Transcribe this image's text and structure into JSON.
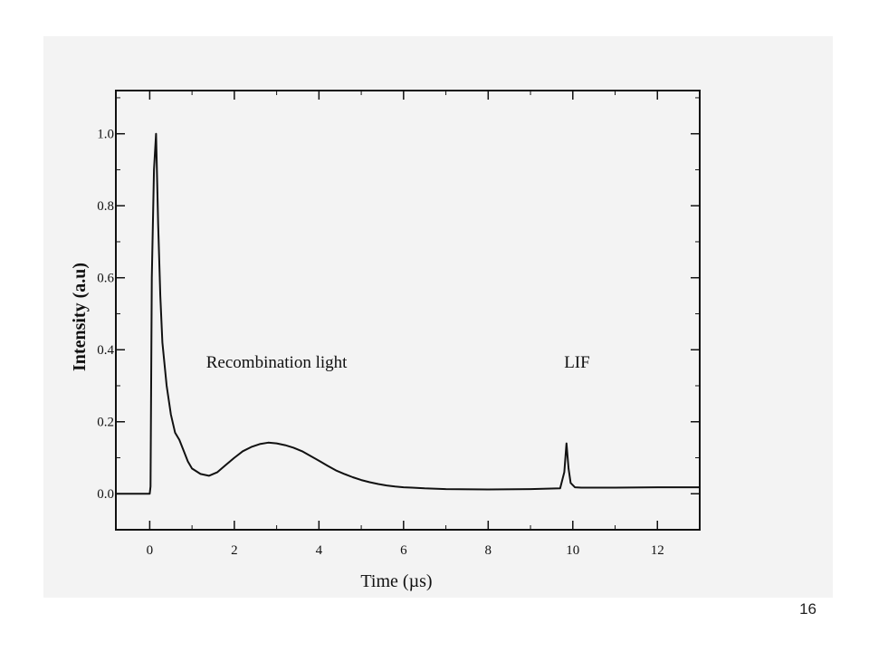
{
  "slide": {
    "page_number": "16"
  },
  "colors": {
    "panel_background": "#f3f3f3",
    "ink": "#111111"
  },
  "chart_data": {
    "type": "line",
    "title": "",
    "xlabel": "Time (µs)",
    "ylabel": "Intensity (a.u)",
    "xlim": [
      -0.8,
      13
    ],
    "ylim": [
      -0.1,
      1.12
    ],
    "xticks": [
      0,
      2,
      4,
      6,
      8,
      10,
      12
    ],
    "xtick_labels": [
      "0",
      "2",
      "4",
      "6",
      "8",
      "10",
      "12"
    ],
    "yticks": [
      0.0,
      0.2,
      0.4,
      0.6,
      0.8,
      1.0
    ],
    "ytick_labels": [
      "0.0",
      "0.2",
      "0.4",
      "0.6",
      "0.8",
      "1.0"
    ],
    "grid": false,
    "annotations": [
      {
        "text": "Recombination light",
        "x": 3.0,
        "y": 0.35
      },
      {
        "text": "LIF",
        "x": 10.1,
        "y": 0.35
      }
    ],
    "series": [
      {
        "x": [
          -0.8,
          0.0,
          0.02,
          0.05,
          0.1,
          0.15,
          0.2,
          0.25,
          0.3,
          0.4,
          0.5,
          0.6,
          0.7,
          0.8,
          0.9,
          1.0,
          1.2,
          1.4,
          1.6,
          1.8,
          2.0,
          2.2,
          2.4,
          2.6,
          2.8,
          3.0,
          3.2,
          3.4,
          3.6,
          3.8,
          4.0,
          4.2,
          4.4,
          4.6,
          4.8,
          5.0,
          5.2,
          5.4,
          5.6,
          5.8,
          6.0,
          6.2,
          6.5,
          7.0,
          8.0,
          9.0,
          9.7,
          9.8,
          9.85,
          9.9,
          9.95,
          10.05,
          10.2,
          11.0,
          12.0,
          13.0
        ],
        "y": [
          0.0,
          0.0,
          0.02,
          0.6,
          0.9,
          1.0,
          0.75,
          0.55,
          0.42,
          0.3,
          0.22,
          0.17,
          0.15,
          0.12,
          0.09,
          0.07,
          0.055,
          0.05,
          0.06,
          0.08,
          0.1,
          0.118,
          0.13,
          0.138,
          0.142,
          0.14,
          0.135,
          0.128,
          0.118,
          0.105,
          0.092,
          0.078,
          0.065,
          0.055,
          0.046,
          0.038,
          0.032,
          0.027,
          0.023,
          0.02,
          0.018,
          0.017,
          0.015,
          0.013,
          0.012,
          0.013,
          0.015,
          0.06,
          0.14,
          0.07,
          0.03,
          0.018,
          0.017,
          0.017,
          0.018,
          0.018
        ]
      }
    ]
  }
}
